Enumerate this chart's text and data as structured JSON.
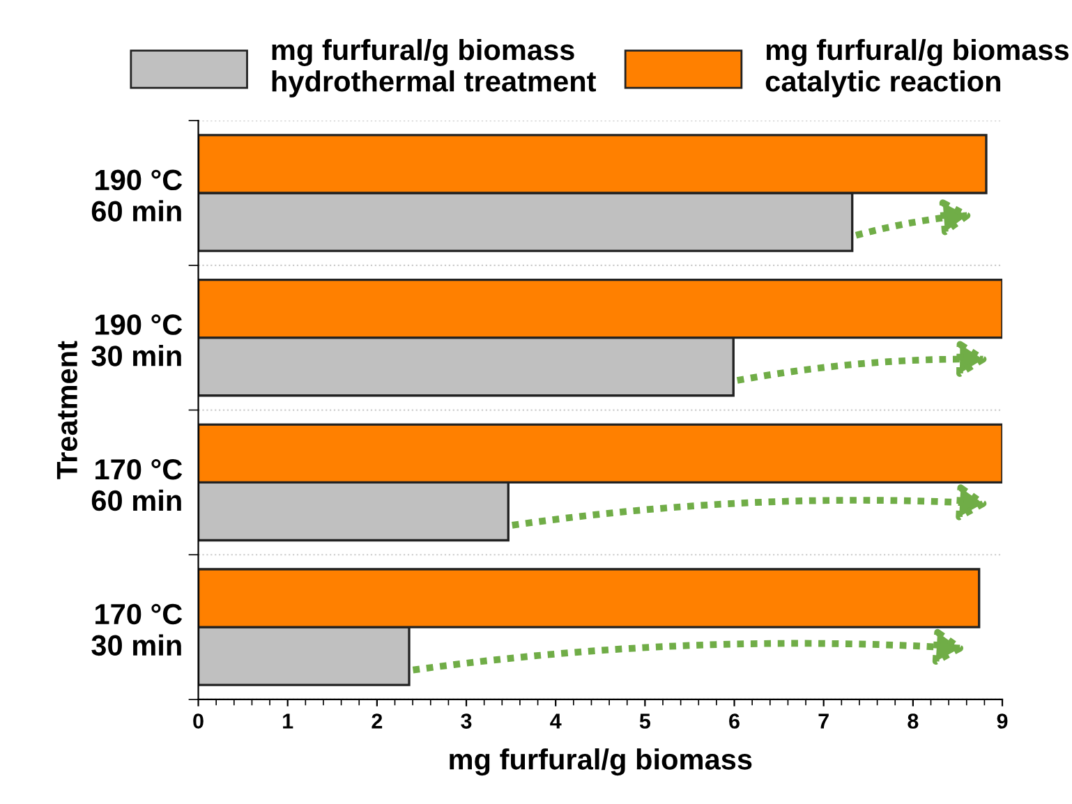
{
  "chart_data": {
    "type": "bar",
    "orientation": "horizontal",
    "xlabel": "mg furfural/g biomass",
    "ylabel": "Treatment",
    "categories": [
      "190 °C\n60 min",
      "190 °C\n30 min",
      "170 °C\n60 min",
      "170 °C\n30 min"
    ],
    "series": [
      {
        "name": "mg furfural/g biomass\nhydrothermal treatment",
        "color": "#c0c0c0",
        "values": [
          7.32,
          5.99,
          3.47,
          2.36
        ]
      },
      {
        "name": "mg furfural/g biomass\ncatalytic reaction",
        "color": "#ff8000",
        "values": [
          8.82,
          9.0,
          9.0,
          8.74
        ]
      }
    ],
    "xlim": [
      0,
      9
    ],
    "xticks": [
      0,
      1,
      2,
      3,
      4,
      5,
      6,
      7,
      8,
      9
    ],
    "grid": "y",
    "legend": "top"
  }
}
